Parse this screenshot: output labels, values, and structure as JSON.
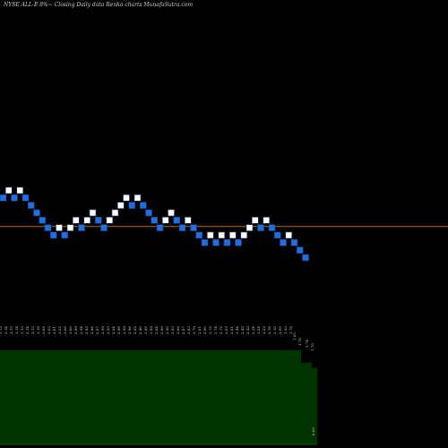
{
  "header": {
    "title": "NYSE ALL-E 8%~  Closing Daily data  Renko  charts MunafaSutra.com"
  },
  "colors": {
    "background": "#000000",
    "up_brick": "#ffffff",
    "down_brick": "#1e6fe6",
    "brick_outline": "#1f3a66",
    "reference_line": "#b06a1c",
    "volume_fill": "#003300",
    "volume_outline": "#0b5a0b",
    "label_text": "#cfcfcf"
  },
  "chart_data": {
    "type": "renko",
    "bricks": [
      {
        "d": "down",
        "v": 2.92
      },
      {
        "d": "up",
        "v": 2.95
      },
      {
        "d": "down",
        "v": 2.92
      },
      {
        "d": "up",
        "v": 2.95
      },
      {
        "d": "down",
        "v": 2.92
      },
      {
        "d": "down",
        "v": 2.89
      },
      {
        "d": "down",
        "v": 2.86
      },
      {
        "d": "down",
        "v": 2.83
      },
      {
        "d": "down",
        "v": 2.8
      },
      {
        "d": "down",
        "v": 2.77
      },
      {
        "d": "up",
        "v": 2.8
      },
      {
        "d": "down",
        "v": 2.77
      },
      {
        "d": "up",
        "v": 2.8
      },
      {
        "d": "up",
        "v": 2.83
      },
      {
        "d": "down",
        "v": 2.8
      },
      {
        "d": "up",
        "v": 2.83
      },
      {
        "d": "up",
        "v": 2.86
      },
      {
        "d": "down",
        "v": 2.83
      },
      {
        "d": "down",
        "v": 2.8
      },
      {
        "d": "up",
        "v": 2.83
      },
      {
        "d": "up",
        "v": 2.86
      },
      {
        "d": "up",
        "v": 2.89
      },
      {
        "d": "up",
        "v": 2.92
      },
      {
        "d": "down",
        "v": 2.89
      },
      {
        "d": "up",
        "v": 2.92
      },
      {
        "d": "down",
        "v": 2.89
      },
      {
        "d": "down",
        "v": 2.86
      },
      {
        "d": "down",
        "v": 2.83
      },
      {
        "d": "down",
        "v": 2.8
      },
      {
        "d": "up",
        "v": 2.83
      },
      {
        "d": "up",
        "v": 2.86
      },
      {
        "d": "down",
        "v": 2.83
      },
      {
        "d": "down",
        "v": 2.8
      },
      {
        "d": "up",
        "v": 2.83
      },
      {
        "d": "down",
        "v": 2.8
      },
      {
        "d": "down",
        "v": 2.77
      },
      {
        "d": "down",
        "v": 2.74
      },
      {
        "d": "up",
        "v": 2.77
      },
      {
        "d": "down",
        "v": 2.74
      },
      {
        "d": "up",
        "v": 2.77
      },
      {
        "d": "down",
        "v": 2.74
      },
      {
        "d": "up",
        "v": 2.77
      },
      {
        "d": "down",
        "v": 2.74
      },
      {
        "d": "up",
        "v": 2.77
      },
      {
        "d": "up",
        "v": 2.8
      },
      {
        "d": "up",
        "v": 2.83
      },
      {
        "d": "down",
        "v": 2.8
      },
      {
        "d": "up",
        "v": 2.83
      },
      {
        "d": "down",
        "v": 2.8
      },
      {
        "d": "down",
        "v": 2.77
      },
      {
        "d": "down",
        "v": 2.74
      },
      {
        "d": "up",
        "v": 2.77
      },
      {
        "d": "down",
        "v": 2.74
      },
      {
        "d": "down",
        "v": 2.71
      },
      {
        "d": "down",
        "v": 2.68
      }
    ],
    "reference_value": 2.79,
    "y_range": [
      2.62,
      2.98
    ],
    "price_labels": [
      "3.12",
      "3.14",
      "3.15",
      "3.14",
      "3.13",
      "3.14",
      "3.12",
      "3.16",
      "3.08",
      "3.03",
      "3.01",
      "3.02",
      "3.00",
      "3.00",
      "2.99",
      "2.94",
      "2.95",
      "2.96",
      "2.97",
      "2.99",
      "2.95",
      "2.94",
      "2.98",
      "2.99",
      "2.96",
      "2.92",
      "2.90",
      "2.86",
      "2.88",
      "2.84",
      "2.86",
      "2.90",
      "2.85",
      "2.86",
      "2.87",
      "2.83",
      "2.79",
      "2.81",
      "2.80",
      "2.75",
      "2.74",
      "2.72",
      "2.65",
      "2.61",
      "2.48",
      "2.45",
      "2.43",
      "2.34",
      "2.24",
      "2.22",
      "2.18",
      "2.10",
      "2.00",
      "1.93",
      "1.78"
    ],
    "volume_labels": [
      "1.85",
      "1.78",
      "1.74",
      "1.70"
    ],
    "volume": {
      "values": [
        5.3,
        5.3,
        5.3,
        5.3,
        5.3,
        5.3,
        5.3,
        5.3,
        5.3,
        5.3,
        5.3,
        5.3,
        5.3,
        5.3,
        5.3,
        5.3,
        5.3,
        5.3,
        5.3,
        5.3,
        5.3,
        5.3,
        5.3,
        5.3,
        5.3,
        5.3,
        5.3,
        5.3,
        5.3,
        5.3,
        5.3,
        5.3,
        5.3,
        5.3,
        5.3,
        5.3,
        5.3,
        5.3,
        5.3,
        5.3,
        5.3,
        5.3,
        5.3,
        5.3,
        5.3,
        5.3,
        5.3,
        5.3,
        5.3,
        5.3,
        5.3,
        5.3,
        5.3,
        5.3,
        5.3,
        5.3,
        4.6,
        4.6,
        4.3
      ],
      "max": 6.1,
      "last_label": "0.03"
    }
  }
}
